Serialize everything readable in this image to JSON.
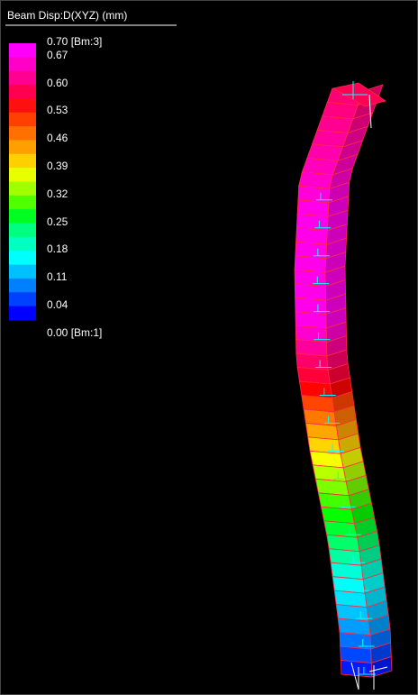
{
  "legend": {
    "title": "Beam Disp:D(XYZ) (mm)",
    "labels": [
      "0.70 [Bm:3]",
      "0.67",
      "0.60",
      "0.53",
      "0.46",
      "0.39",
      "0.32",
      "0.25",
      "0.18",
      "0.11",
      "0.04",
      "0.00 [Bm:1]"
    ]
  }
}
